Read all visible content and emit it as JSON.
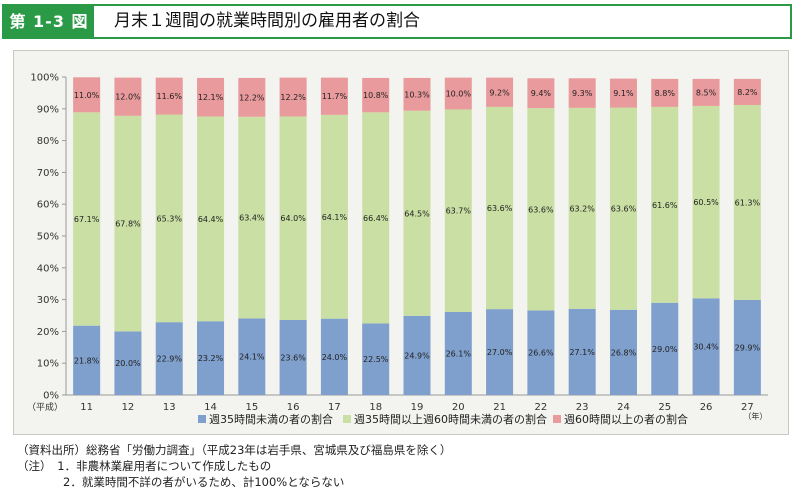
{
  "header": {
    "figure_label": "第 1-3 図",
    "title": "月末１週間の就業時間別の雇用者の割合"
  },
  "colors": {
    "accent_green": "#2a9a47",
    "series_under35": "#7f9fcc",
    "series_35to60": "#c9dfa4",
    "series_60plus": "#e99a9c"
  },
  "chart_data": {
    "type": "bar",
    "stacked": true,
    "x_prefix": "（平成）",
    "x_suffix": "（年）",
    "categories": [
      "11",
      "12",
      "13",
      "14",
      "15",
      "16",
      "17",
      "18",
      "19",
      "20",
      "21",
      "22",
      "23",
      "24",
      "25",
      "26",
      "27"
    ],
    "series": [
      {
        "name": "週35時間未満の者の割合",
        "color": "#7f9fcc",
        "values": [
          21.8,
          20.0,
          22.9,
          23.2,
          24.1,
          23.6,
          24.0,
          22.5,
          24.9,
          26.1,
          27.0,
          26.6,
          27.1,
          26.8,
          29.0,
          30.4,
          29.9
        ],
        "labels": [
          "21.8%",
          "20.0%",
          "22.9%",
          "23.2%",
          "24.1%",
          "23.6%",
          "24.0%",
          "22.5%",
          "24.9%",
          "26.1%",
          "27.0%",
          "26.6%",
          "27.1%",
          "26.8%",
          "29.0%",
          "30.4%",
          "29.9%"
        ]
      },
      {
        "name": "週35時間以上週60時間未満の者の割合",
        "color": "#c9dfa4",
        "values": [
          67.1,
          67.8,
          65.3,
          64.4,
          63.4,
          64.0,
          64.1,
          66.4,
          64.5,
          63.7,
          63.6,
          63.6,
          63.2,
          63.6,
          61.6,
          60.5,
          61.3
        ],
        "labels": [
          "67.1%",
          "67.8%",
          "65.3%",
          "64.4%",
          "63.4%",
          "64.0%",
          "64.1%",
          "66.4%",
          "64.5%",
          "63.7%",
          "63.6%",
          "63.6%",
          "63.2%",
          "63.6%",
          "61.6%",
          "60.5%",
          "61.3%"
        ]
      },
      {
        "name": "週60時間以上の者の割合",
        "color": "#e99a9c",
        "values": [
          11.0,
          12.0,
          11.6,
          12.1,
          12.2,
          12.2,
          11.7,
          10.8,
          10.3,
          10.0,
          9.2,
          9.4,
          9.3,
          9.1,
          8.8,
          8.5,
          8.2
        ],
        "labels": [
          "11.0%",
          "12.0%",
          "11.6%",
          "12.1%",
          "12.2%",
          "12.2%",
          "11.7%",
          "10.8%",
          "10.3%",
          "10.0%",
          "9.2%",
          "9.4%",
          "9.3%",
          "9.1%",
          "8.8%",
          "8.5%",
          "8.2%"
        ]
      }
    ],
    "y_ticks": [
      "0%",
      "10%",
      "20%",
      "30%",
      "40%",
      "50%",
      "60%",
      "70%",
      "80%",
      "90%",
      "100%"
    ],
    "ylim": [
      0,
      100
    ],
    "grid": false,
    "legend_position": "bottom"
  },
  "notes": {
    "source": "（資料出所）総務省「労働力調査」（平成23年は岩手県、宮城県及び福島県を除く）",
    "note1": "（注）　1．非農林業雇用者について作成したもの",
    "note2": "　　　　2．就業時間不詳の者がいるため、計100%とならない"
  }
}
